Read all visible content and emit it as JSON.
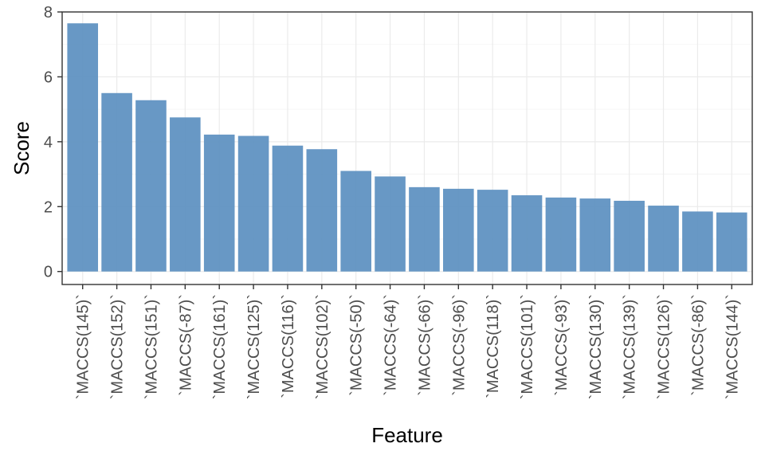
{
  "chart_data": {
    "type": "bar",
    "xlabel": "Feature",
    "ylabel": "Score",
    "ylim": [
      0,
      8
    ],
    "yticks": [
      0,
      2,
      4,
      6,
      8
    ],
    "grid": true,
    "bar_color": "#5b8fc0",
    "categories": [
      "`MACCS(145)`",
      "`MACCS(152)`",
      "`MACCS(151)`",
      "`MACCS(-87)`",
      "`MACCS(161)`",
      "`MACCS(125)`",
      "`MACCS(116)`",
      "`MACCS(102)`",
      "`MACCS(-50)`",
      "`MACCS(-64)`",
      "`MACCS(-66)`",
      "`MACCS(-96)`",
      "`MACCS(118)`",
      "`MACCS(101)`",
      "`MACCS(-93)`",
      "`MACCS(130)`",
      "`MACCS(139)`",
      "`MACCS(126)`",
      "`MACCS(-86)`",
      "`MACCS(144)`"
    ],
    "values": [
      7.65,
      5.5,
      5.28,
      4.75,
      4.22,
      4.18,
      3.88,
      3.77,
      3.1,
      2.93,
      2.6,
      2.55,
      2.52,
      2.35,
      2.28,
      2.25,
      2.18,
      2.03,
      1.85,
      1.82
    ]
  }
}
